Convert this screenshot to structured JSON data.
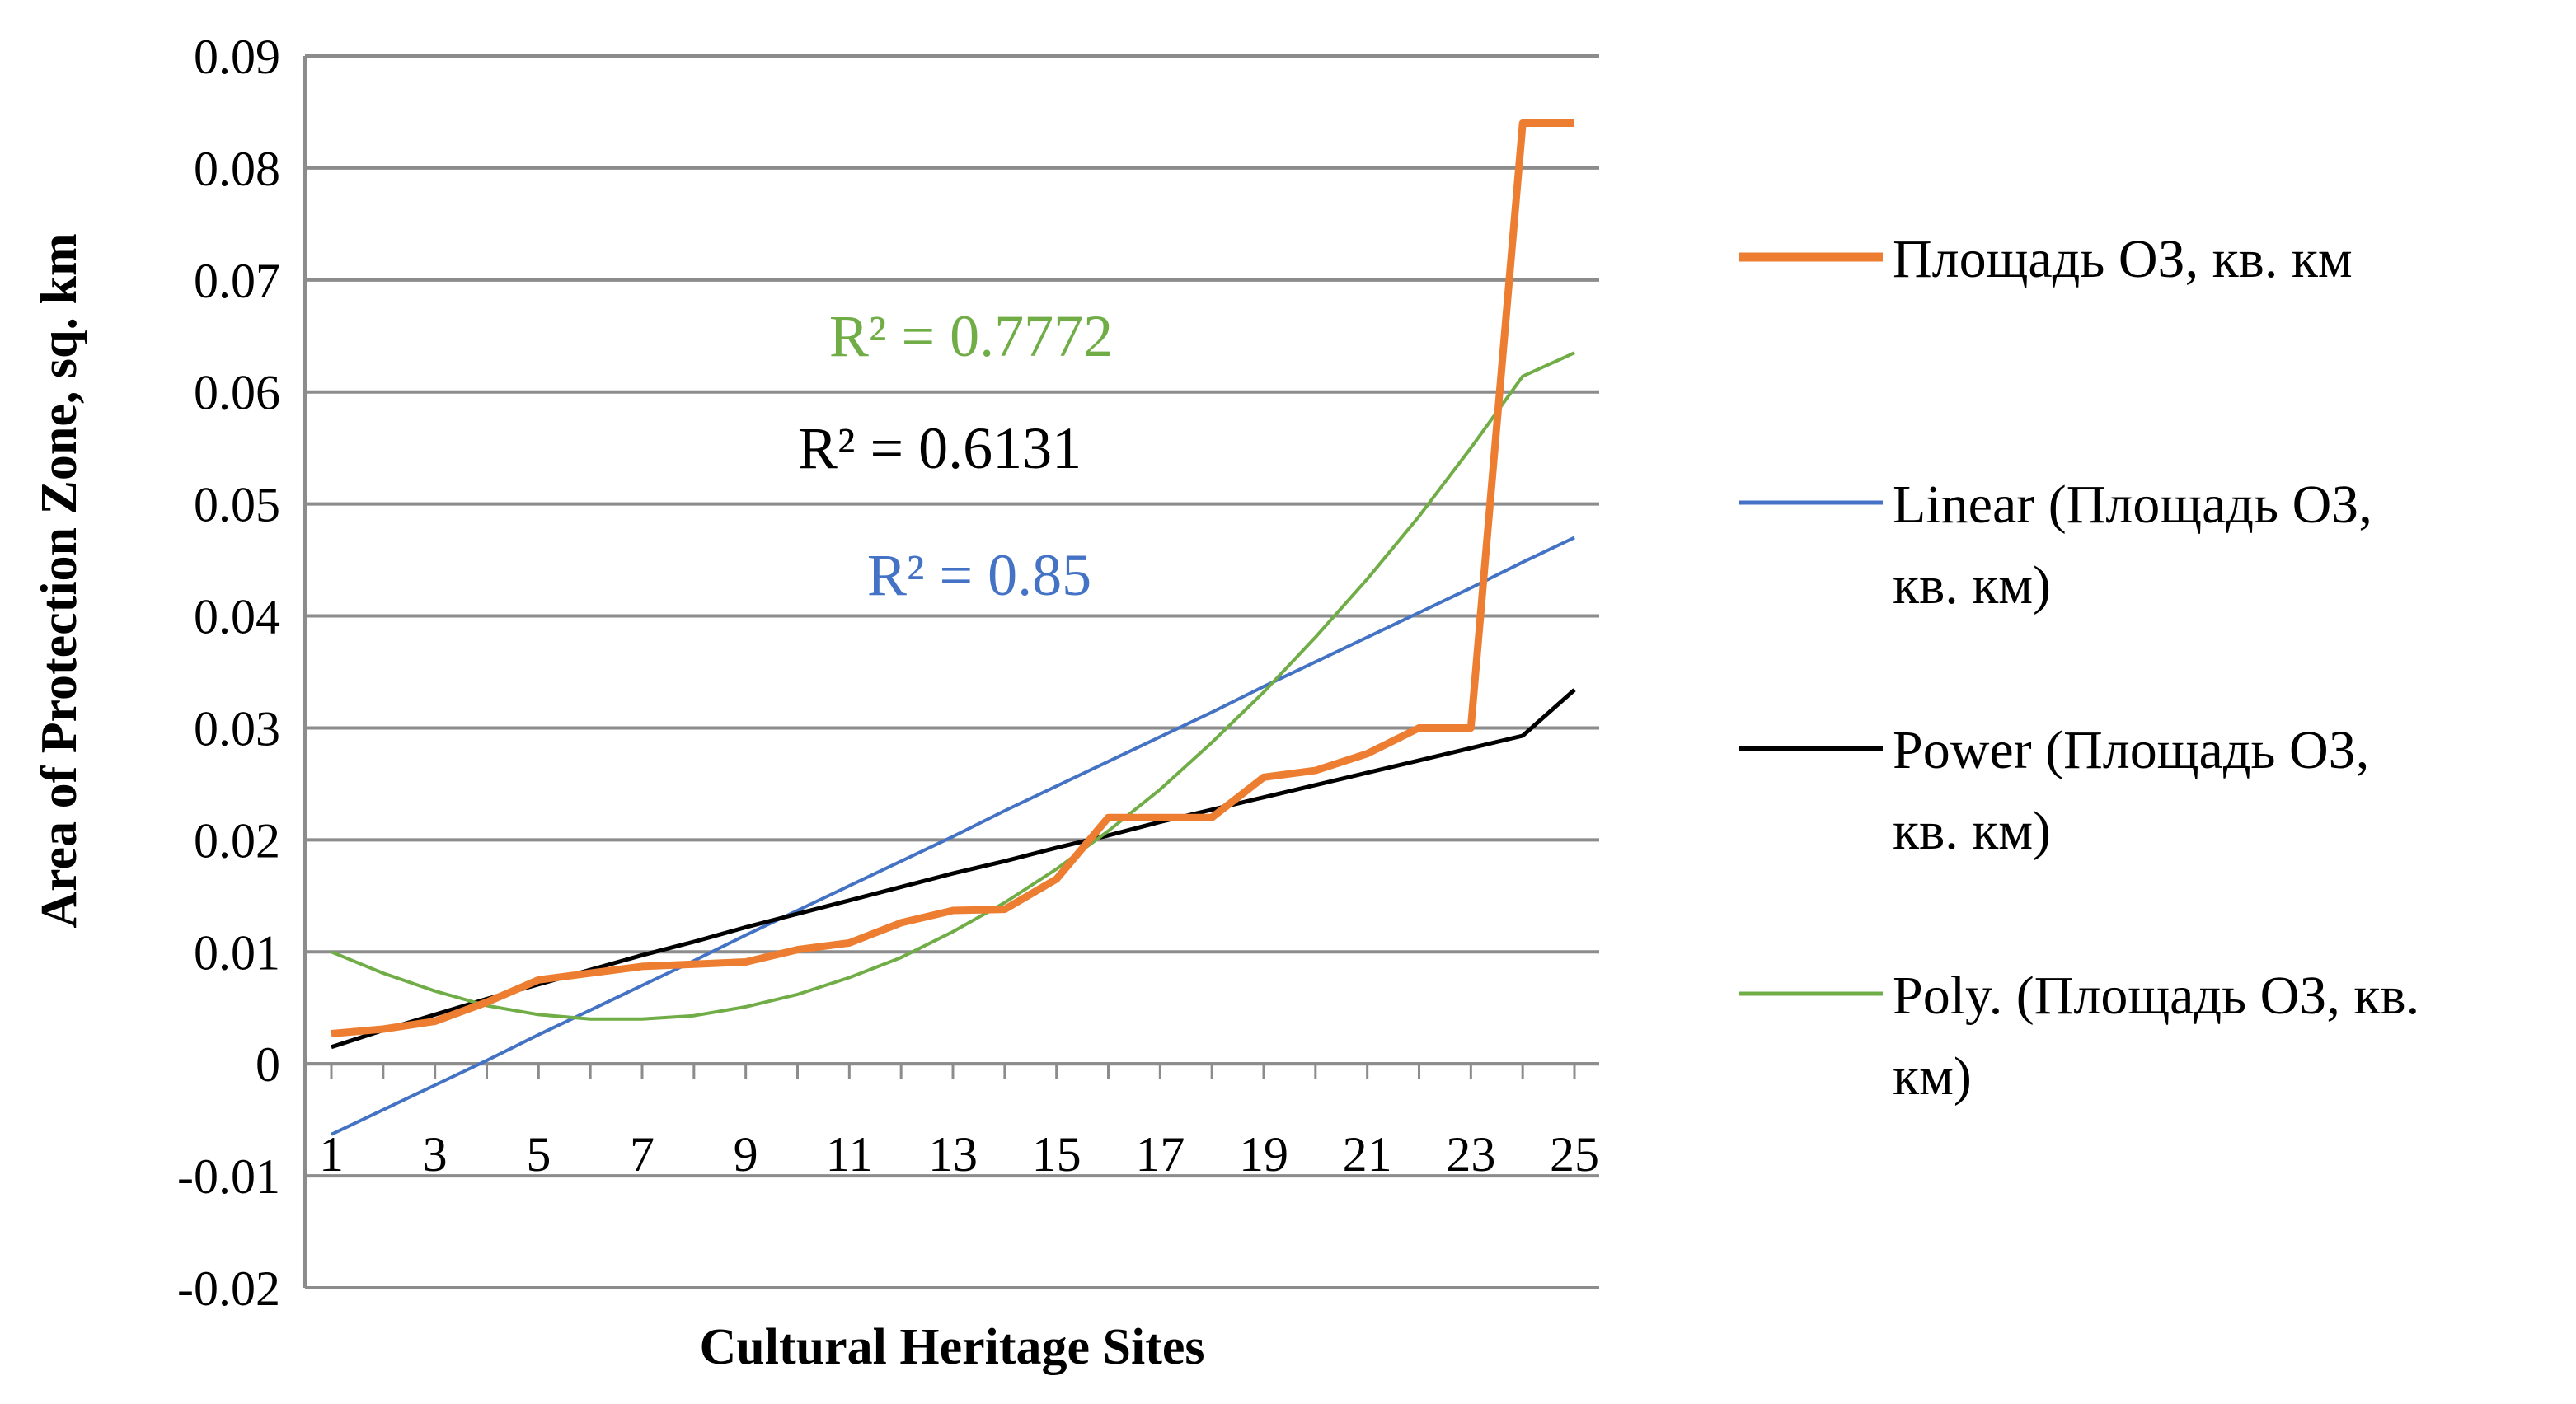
{
  "chart_data": {
    "type": "line",
    "xlabel": "Cultural Heritage Sites",
    "ylabel": "Area of Protection Zone, sq. km",
    "ylim": [
      -0.02,
      0.09
    ],
    "xlim": [
      1,
      25
    ],
    "y_ticks": [
      "0.09",
      "0.08",
      "0.07",
      "0.06",
      "0.05",
      "0.04",
      "0.03",
      "0.02",
      "0.01",
      "0",
      "-0.01",
      "-0.02"
    ],
    "y_tick_values": [
      0.09,
      0.08,
      0.07,
      0.06,
      0.05,
      0.04,
      0.03,
      0.02,
      0.01,
      0,
      -0.01,
      -0.02
    ],
    "x_ticks": [
      "1",
      "3",
      "5",
      "7",
      "9",
      "11",
      "13",
      "15",
      "17",
      "19",
      "21",
      "23",
      "25"
    ],
    "x_tick_values": [
      1,
      3,
      5,
      7,
      9,
      11,
      13,
      15,
      17,
      19,
      21,
      23,
      25
    ],
    "grid": "horizontal",
    "legend_position": "right",
    "x": [
      1,
      2,
      3,
      4,
      5,
      6,
      7,
      8,
      9,
      10,
      11,
      12,
      13,
      14,
      15,
      16,
      17,
      18,
      19,
      20,
      21,
      22,
      23,
      24,
      25
    ],
    "series": [
      {
        "name": "Площадь ОЗ, кв. км",
        "legend_lines": [
          "Площадь ОЗ, кв. км"
        ],
        "color": "#ED7D31",
        "width": 9,
        "values": [
          0.0027,
          0.0031,
          0.0038,
          0.0055,
          0.0075,
          0.0081,
          0.0087,
          0.0089,
          0.0091,
          0.0102,
          0.0108,
          0.0126,
          0.0137,
          0.0138,
          0.0165,
          0.022,
          0.022,
          0.022,
          0.0256,
          0.0262,
          0.0277,
          0.03,
          0.03,
          0.084,
          0.084
        ]
      },
      {
        "name": "Linear (Площадь ОЗ, кв. км)",
        "legend_lines": [
          "Linear (Площадь ОЗ,",
          "кв. км)"
        ],
        "color": "#4472C4",
        "width": 4,
        "values": [
          -0.0063,
          -0.0041,
          -0.0019,
          0.0003,
          0.0026,
          0.0048,
          0.007,
          0.0092,
          0.0115,
          0.0137,
          0.0159,
          0.0181,
          0.0203,
          0.0226,
          0.0248,
          0.027,
          0.0292,
          0.0314,
          0.0337,
          0.0359,
          0.0381,
          0.0403,
          0.0425,
          0.0448,
          0.047
        ]
      },
      {
        "name": "Power (Площадь ОЗ, кв. км)",
        "legend_lines": [
          "Power (Площадь ОЗ,",
          "кв. км)"
        ],
        "color": "#000000",
        "width": 5,
        "values": [
          0.0015,
          0.003,
          0.0044,
          0.0058,
          0.0071,
          0.0084,
          0.0097,
          0.0109,
          0.0122,
          0.0134,
          0.0146,
          0.0158,
          0.017,
          0.0181,
          0.0193,
          0.0204,
          0.0216,
          0.0227,
          0.0238,
          0.0249,
          0.026,
          0.0271,
          0.0282,
          0.0293,
          0.0334
        ]
      },
      {
        "name": "Poly. (Площадь ОЗ, кв. км)",
        "legend_lines": [
          "Poly. (Площадь ОЗ, кв.",
          "км)"
        ],
        "color": "#70AD47",
        "width": 4,
        "values": [
          0.01,
          0.0081,
          0.0065,
          0.0052,
          0.0044,
          0.004,
          0.004,
          0.0043,
          0.0051,
          0.0062,
          0.0077,
          0.0095,
          0.0118,
          0.0144,
          0.0174,
          0.0208,
          0.0245,
          0.0287,
          0.0332,
          0.0381,
          0.0433,
          0.0489,
          0.055,
          0.0614,
          0.0635
        ]
      }
    ],
    "annotations": [
      {
        "text": "R² = 0.7772",
        "color": "#70AD47"
      },
      {
        "text": "R² = 0.6131",
        "color": "#000000"
      },
      {
        "text": "R² = 0.85",
        "color": "#4472C4"
      }
    ]
  }
}
